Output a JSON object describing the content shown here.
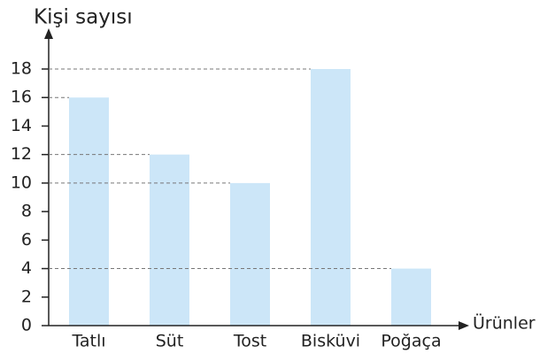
{
  "chart_data": {
    "type": "bar",
    "y_label": "Kişi sayısı",
    "x_label": "Ürünler",
    "categories": [
      "Tatlı",
      "Süt",
      "Tost",
      "Bisküvi",
      "Poğaça"
    ],
    "values": [
      16,
      12,
      10,
      18,
      4
    ],
    "color": "#cce6f8",
    "ylim": [
      0,
      18
    ],
    "yticks": [
      0,
      2,
      4,
      6,
      8,
      10,
      12,
      14,
      16,
      18
    ],
    "reference_lines": true
  }
}
